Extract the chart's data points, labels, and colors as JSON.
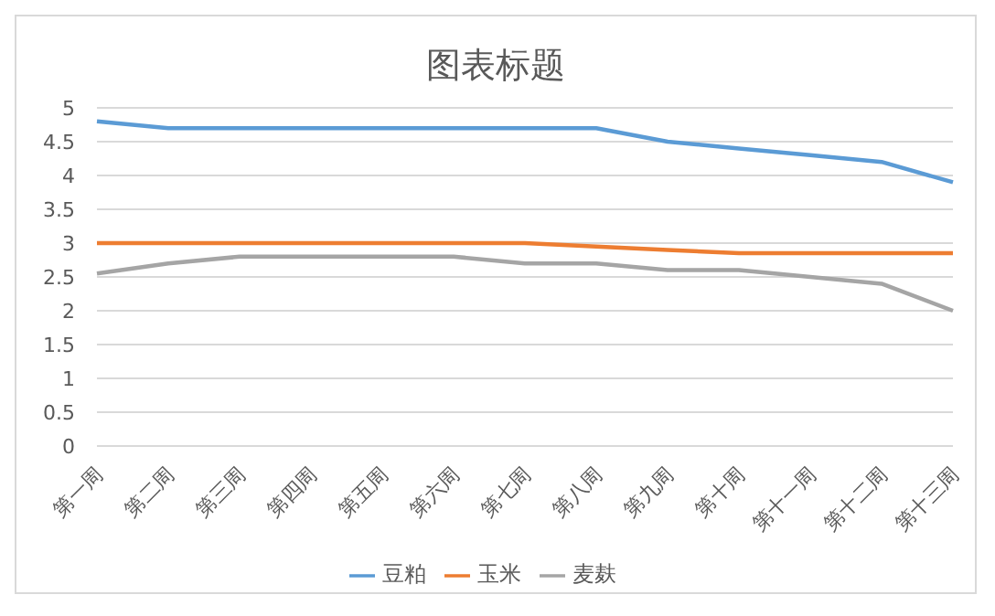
{
  "chart_data": {
    "type": "line",
    "title": "图表标题",
    "categories": [
      "第一周",
      "第二周",
      "第三周",
      "第四周",
      "第五周",
      "第六周",
      "第七周",
      "第八周",
      "第九周",
      "第十周",
      "第十一周",
      "第十二周",
      "第十三周"
    ],
    "series": [
      {
        "name": "豆粕",
        "color": "#5b9bd5",
        "values": [
          4.8,
          4.7,
          4.7,
          4.7,
          4.7,
          4.7,
          4.7,
          4.7,
          4.5,
          4.4,
          4.3,
          4.2,
          3.9
        ]
      },
      {
        "name": "玉米",
        "color": "#ed7d31",
        "values": [
          3,
          3,
          3,
          3,
          3,
          3,
          3,
          2.95,
          2.9,
          2.85,
          2.85,
          2.85,
          2.85
        ]
      },
      {
        "name": "麦麸",
        "color": "#a5a5a5",
        "values": [
          2.55,
          2.7,
          2.8,
          2.8,
          2.8,
          2.8,
          2.7,
          2.7,
          2.6,
          2.6,
          2.5,
          2.4,
          2
        ]
      }
    ],
    "ylim": [
      0,
      5
    ],
    "yticks": [
      0,
      0.5,
      1,
      1.5,
      2,
      2.5,
      3,
      3.5,
      4,
      4.5,
      5
    ],
    "grid": "y",
    "legend": "bottom",
    "marker": "none",
    "line_style": "solid"
  }
}
